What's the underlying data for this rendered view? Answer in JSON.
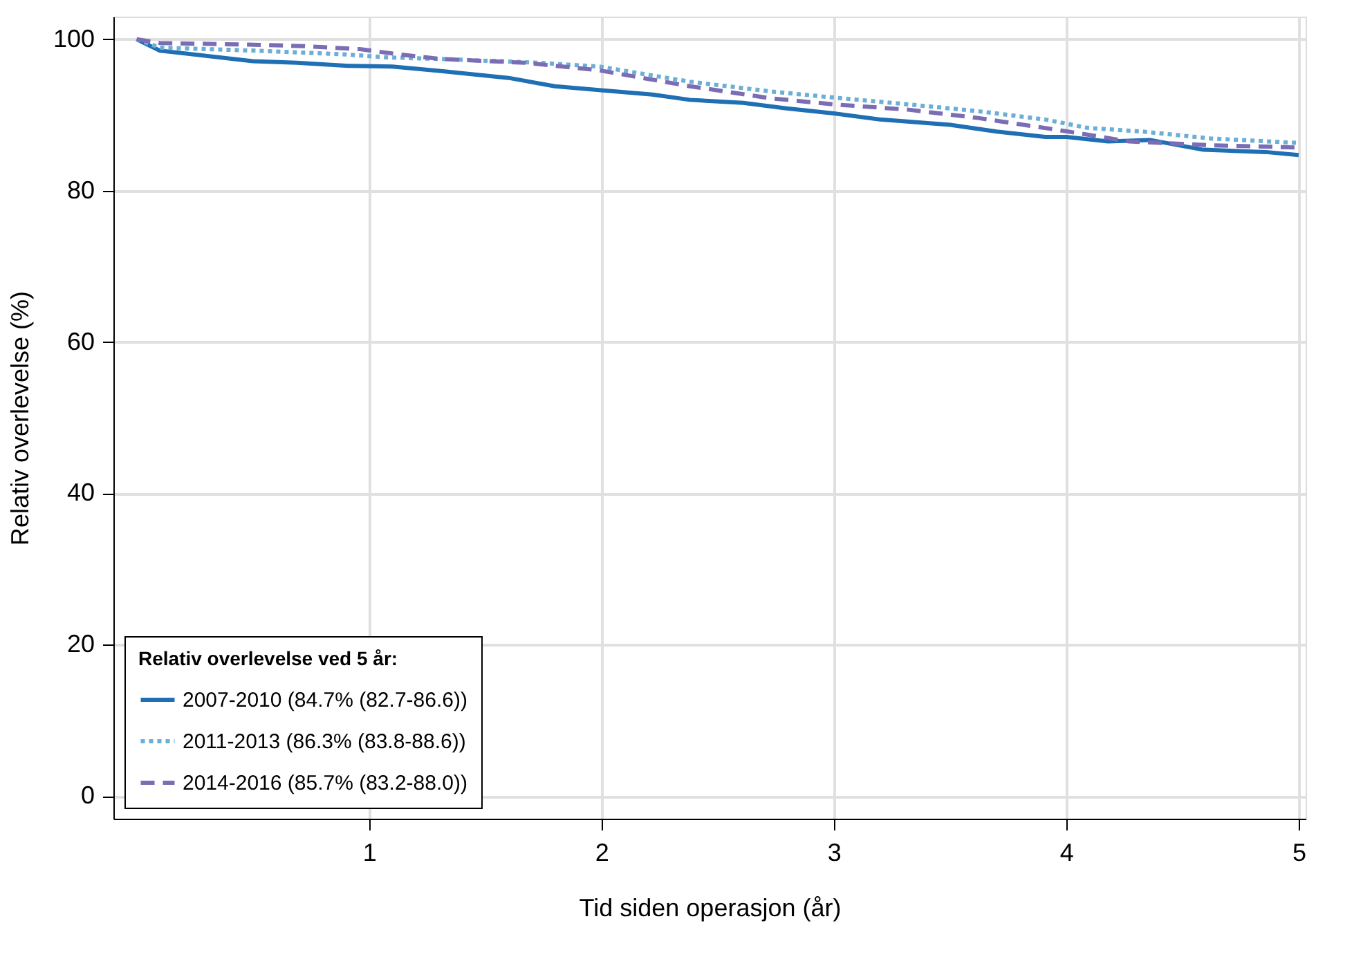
{
  "chart_data": {
    "type": "line",
    "xlabel": "Tid siden operasjon (år)",
    "ylabel": "Relativ overlevelse (%)",
    "legend_title": "Relativ overlevelse ved 5 år:",
    "xlim": [
      -0.1,
      5.03
    ],
    "ylim": [
      -3,
      103
    ],
    "xticks": [
      1,
      2,
      3,
      4,
      5
    ],
    "yticks": [
      0,
      20,
      40,
      60,
      80,
      100
    ],
    "grid": true,
    "legend": "bottom left",
    "marker": "none",
    "series": [
      {
        "name": "2007-2010 (84.7% (82.7-86.6))",
        "color": "#1f6fb4",
        "line_style": "solid",
        "x": [
          0,
          0.1,
          0.5,
          0.69,
          0.91,
          1.1,
          1.31,
          1.6,
          1.8,
          1.99,
          2.22,
          2.38,
          2.61,
          2.79,
          3.0,
          3.2,
          3.5,
          3.7,
          3.91,
          4.0,
          4.18,
          4.36,
          4.59,
          4.86,
          5.0
        ],
        "values": [
          100,
          98.5,
          97.1,
          96.9,
          96.5,
          96.4,
          95.8,
          94.9,
          93.8,
          93.3,
          92.7,
          92.0,
          91.6,
          90.9,
          90.2,
          89.4,
          88.7,
          87.8,
          87.1,
          87.1,
          86.5,
          86.7,
          85.4,
          85.1,
          84.7
        ]
      },
      {
        "name": "2011-2013 (86.3% (83.8-88.6))",
        "color": "#6baed6",
        "line_style": "dotted",
        "x": [
          0,
          0.1,
          0.51,
          0.9,
          1.08,
          1.31,
          1.73,
          1.99,
          2.38,
          2.73,
          3.0,
          3.32,
          3.62,
          3.91,
          4.09,
          4.33,
          4.62,
          5.0
        ],
        "values": [
          100,
          98.9,
          98.5,
          98.0,
          97.6,
          97.4,
          96.9,
          96.4,
          94.4,
          93.1,
          92.3,
          91.4,
          90.5,
          89.4,
          88.3,
          87.8,
          86.9,
          86.3
        ]
      },
      {
        "name": "2014-2016 (85.7% (83.2-88.0))",
        "color": "#7b6db5",
        "line_style": "dashed",
        "x": [
          0,
          0.1,
          0.48,
          0.72,
          0.96,
          1.13,
          1.31,
          1.67,
          1.99,
          2.38,
          2.73,
          3.0,
          3.32,
          3.62,
          3.97,
          4.27,
          4.62,
          5.0
        ],
        "values": [
          100,
          99.5,
          99.3,
          99.1,
          98.7,
          98.0,
          97.4,
          96.9,
          95.9,
          93.8,
          92.2,
          91.4,
          90.7,
          89.6,
          88.0,
          86.5,
          86.0,
          85.7
        ]
      }
    ]
  }
}
